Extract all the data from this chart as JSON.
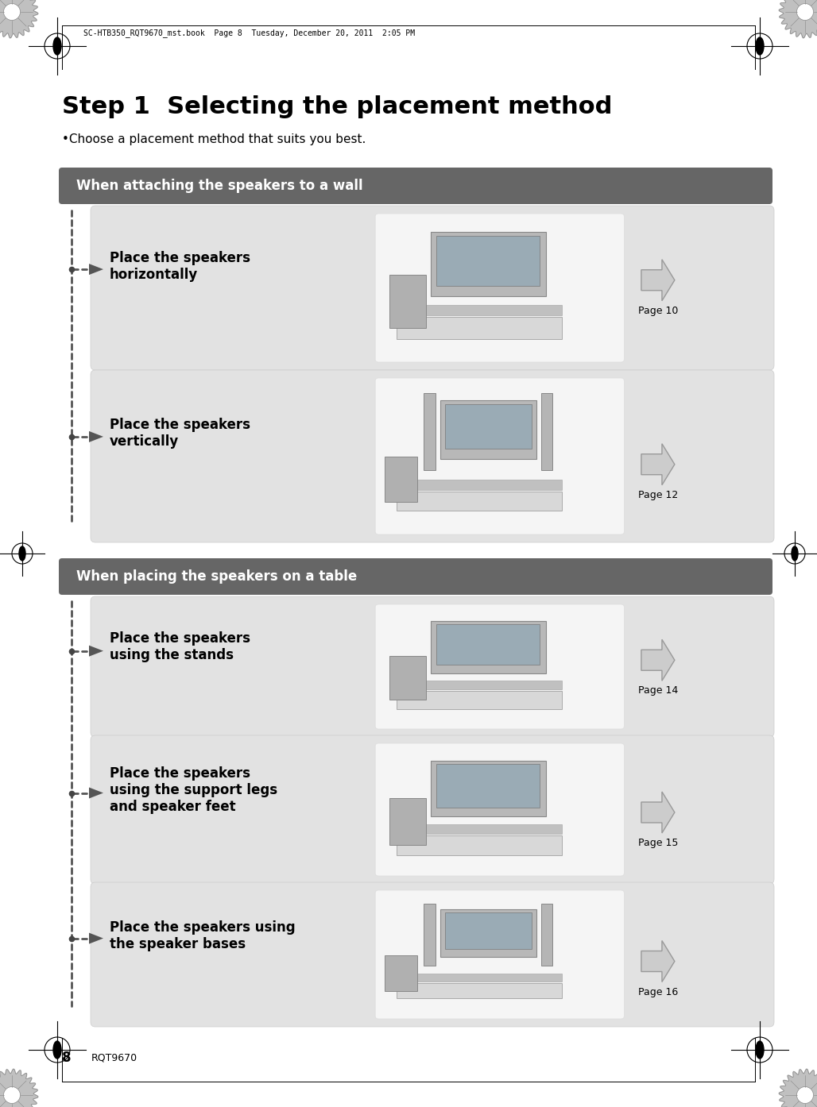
{
  "title": "Step 1  Selecting the placement method",
  "subtitle": "•Choose a placement method that suits you best.",
  "header_top_text": "SC-HTB350_RQT9670_mst.book  Page 8  Tuesday, December 20, 2011  2:05 PM",
  "footer_text": "RQT9670",
  "page_num": "8",
  "bg_color": "#ffffff",
  "section_bar_color": "#666666",
  "section_bar_text_color": "#ffffff",
  "card_bg_color": "#e2e2e2",
  "card_image_bg_color": "#f0f0f0",
  "arrow_color": "#999999",
  "dashed_color": "#555555",
  "dot_color": "#444444",
  "dark_arrow_color": "#555555",
  "sections": [
    {
      "header": "When attaching the speakers to a wall",
      "items": [
        {
          "label": "Place the speakers\nhorizontally",
          "page": "Page 10"
        },
        {
          "label": "Place the speakers\nvertically",
          "page": "Page 12"
        }
      ]
    },
    {
      "header": "When placing the speakers on a table",
      "items": [
        {
          "label": "Place the speakers\nusing the stands",
          "page": "Page 14"
        },
        {
          "label": "Place the speakers\nusing the support legs\nand speaker feet",
          "page": "Page 15"
        },
        {
          "label": "Place the speakers using\nthe speaker bases",
          "page": "Page 16"
        }
      ]
    }
  ]
}
